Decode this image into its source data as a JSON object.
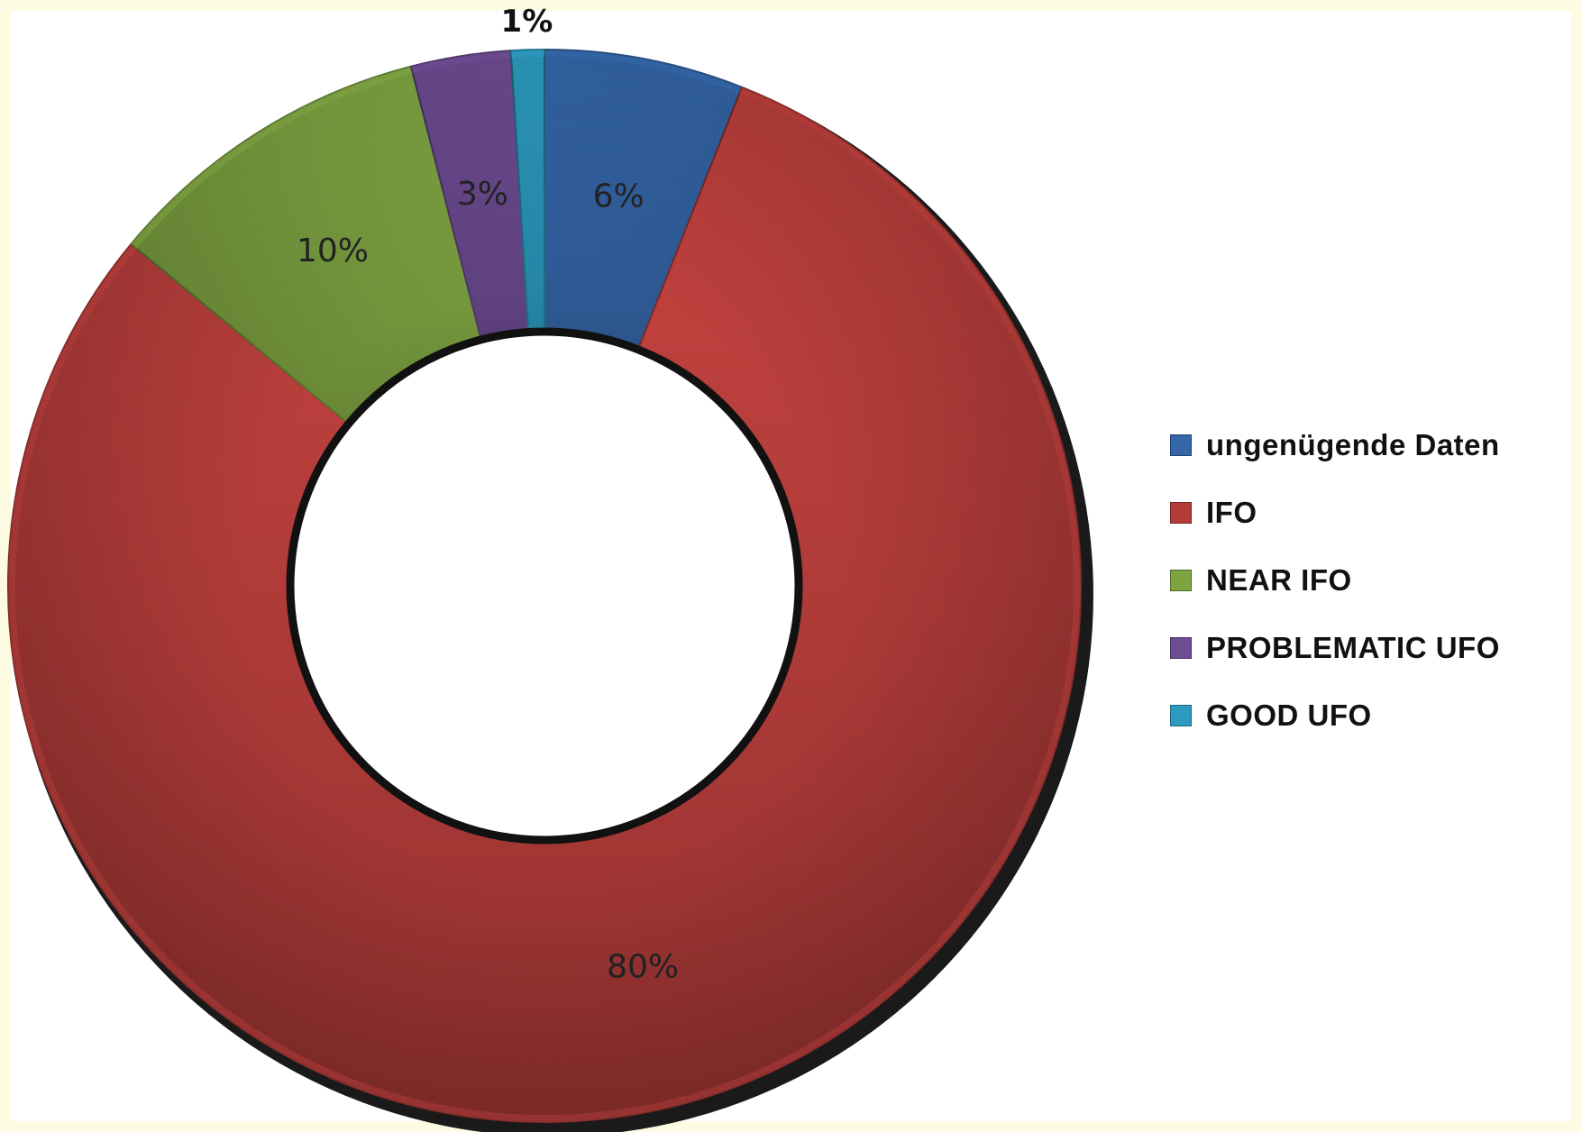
{
  "chart_data": {
    "type": "pie",
    "variant": "donut",
    "categories": [
      "ungenügende Daten",
      "IFO",
      "NEAR IFO",
      "PROBLEMATIC UFO",
      "GOOD UFO"
    ],
    "values": [
      6,
      80,
      10,
      3,
      1
    ],
    "data_labels": [
      "6%",
      "80%",
      "10%",
      "3%",
      "1%"
    ],
    "colors": [
      "#3466a8",
      "#b43d3a",
      "#7ea442",
      "#6e4c93",
      "#2c9bbf"
    ],
    "legend_position": "right",
    "start_angle": "12 o'clock",
    "direction": "clockwise"
  },
  "legend": {
    "items": [
      {
        "label": "ungenügende Daten",
        "color": "#3466a8"
      },
      {
        "label": "IFO",
        "color": "#b43d3a"
      },
      {
        "label": "NEAR IFO",
        "color": "#7ea442"
      },
      {
        "label": "PROBLEMATIC UFO",
        "color": "#6e4c93"
      },
      {
        "label": "GOOD UFO",
        "color": "#2c9bbf"
      }
    ]
  }
}
